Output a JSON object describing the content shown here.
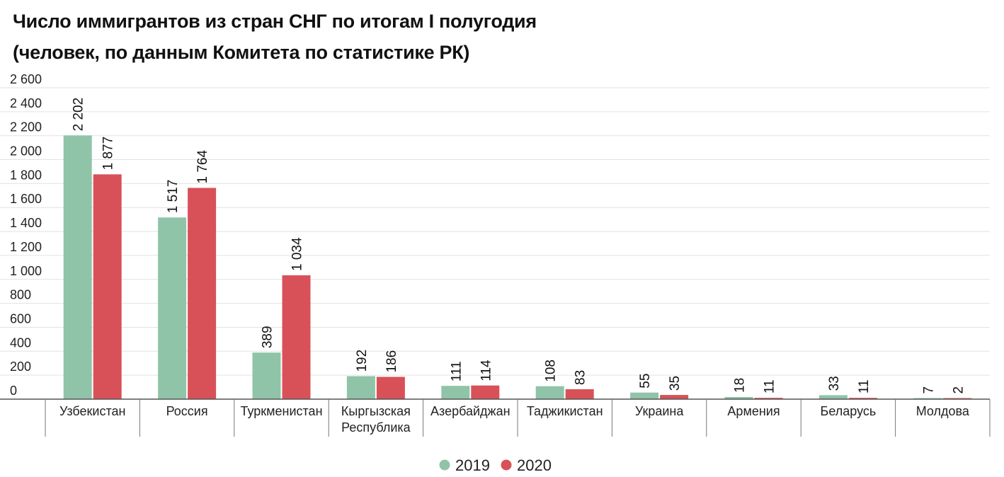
{
  "chart_data": {
    "type": "bar",
    "title": "Число иммигрантов из стран СНГ по итогам I полугодия",
    "subtitle": "(человек, по данным Комитета по статистике РК)",
    "categories": [
      [
        "Узбекистан"
      ],
      [
        "Россия"
      ],
      [
        "Туркменистан"
      ],
      [
        "Кыргызская",
        "Республика"
      ],
      [
        "Азербайджан"
      ],
      [
        "Таджикистан"
      ],
      [
        "Украина"
      ],
      [
        "Армения"
      ],
      [
        "Беларусь"
      ],
      [
        "Молдова"
      ]
    ],
    "series": [
      {
        "name": "2019",
        "color": "#8fc4a8",
        "values": [
          2202,
          1517,
          389,
          192,
          111,
          108,
          55,
          18,
          33,
          7
        ],
        "labels": [
          "2 202",
          "1 517",
          "389",
          "192",
          "111",
          "108",
          "55",
          "18",
          "33",
          "7"
        ]
      },
      {
        "name": "2020",
        "color": "#d95158",
        "values": [
          1877,
          1764,
          1034,
          186,
          114,
          83,
          35,
          11,
          11,
          2
        ],
        "labels": [
          "1 877",
          "1 764",
          "1 034",
          "186",
          "114",
          "83",
          "35",
          "11",
          "11",
          "2"
        ]
      }
    ],
    "ylim": [
      0,
      2600
    ],
    "yticks": [
      0,
      200,
      400,
      600,
      800,
      1000,
      1200,
      1400,
      1600,
      1800,
      2000,
      2200,
      2400,
      2600
    ],
    "ytick_labels": [
      "0",
      "200",
      "400",
      "600",
      "800",
      "1 000",
      "1 200",
      "1 400",
      "1 600",
      "1 800",
      "2 000",
      "2 200",
      "2 400",
      "2 600"
    ],
    "grid": true,
    "legend": "bottom-center",
    "xlabel": "",
    "ylabel": ""
  }
}
